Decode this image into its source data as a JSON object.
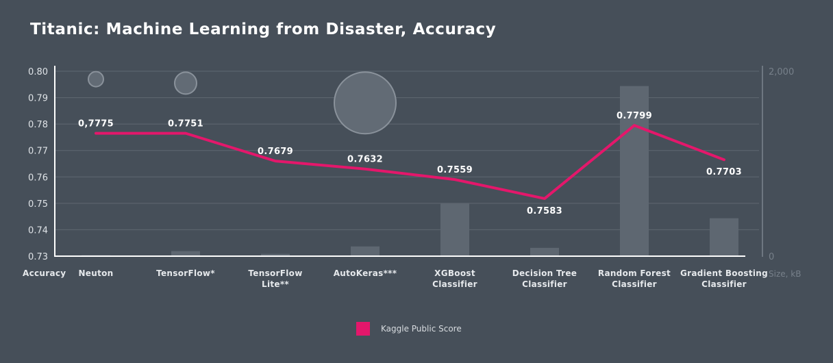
{
  "chart_data": {
    "type": "line",
    "title": "Titanic: Machine Learning from Disaster, Accuracy",
    "categories": [
      [
        "Neuton"
      ],
      [
        "TensorFlow*"
      ],
      [
        "TensorFlow",
        "Lite**"
      ],
      [
        "AutoKeras***"
      ],
      [
        "XGBoost",
        "Classifier"
      ],
      [
        "Decision Tree",
        "Classifier"
      ],
      [
        "Random Forest",
        "Classifier"
      ],
      [
        "Gradient Boosting",
        "Classifier"
      ]
    ],
    "y_left": {
      "title": "Accuracy",
      "ylim": [
        0.73,
        0.8
      ],
      "ticks": [
        "0.80",
        "0.79",
        "0.78",
        "0.77",
        "0.76",
        "0.75",
        "0.74",
        "0.73"
      ]
    },
    "y_right": {
      "title": "Size, kB",
      "ylim": [
        0,
        2000
      ],
      "ticks": [
        "2,000",
        "0"
      ]
    },
    "series": [
      {
        "name": "Kaggle Public Score",
        "type": "line",
        "color": "#e4176b",
        "values": [
          0.7775,
          0.7751,
          0.7679,
          0.7632,
          0.7559,
          0.7583,
          0.7799,
          0.7703
        ],
        "plot_values": [
          0.7765,
          0.7765,
          0.766,
          0.763,
          0.759,
          0.7518,
          0.7795,
          0.7665
        ],
        "labels": [
          "0,7775",
          "0.7751",
          "0.7679",
          "0.7632",
          "0.7559",
          "0.7583",
          "0.7799",
          "0.7703"
        ],
        "label_pos": [
          "above",
          "above",
          "above",
          "above",
          "above",
          "below",
          "above",
          "below"
        ]
      },
      {
        "type": "bar",
        "axis": "right",
        "color": "#5e6771",
        "values": [
          10,
          55,
          25,
          105,
          570,
          90,
          1840,
          410
        ]
      },
      {
        "type": "bubble",
        "color": "#626b75",
        "values": [
          0.797,
          0.7955,
          null,
          0.788,
          null,
          null,
          null,
          null
        ],
        "radius": [
          11,
          16,
          null,
          45,
          null,
          null,
          null,
          null
        ]
      }
    ],
    "grid": true,
    "legend": "bottom-center"
  }
}
